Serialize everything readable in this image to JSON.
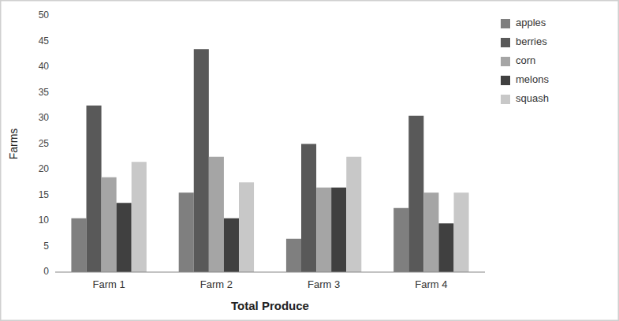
{
  "chart_data": {
    "type": "bar",
    "categories": [
      "Farm 1",
      "Farm 2",
      "Farm 3",
      "Farm 4"
    ],
    "series": [
      {
        "name": "apples",
        "color": "#7f7f7f",
        "values": [
          10.5,
          15.5,
          6.5,
          12.5
        ]
      },
      {
        "name": "berries",
        "color": "#595959",
        "values": [
          32.5,
          43.5,
          25.0,
          30.5
        ]
      },
      {
        "name": "corn",
        "color": "#a5a5a5",
        "values": [
          18.5,
          22.5,
          16.5,
          15.5
        ]
      },
      {
        "name": "melons",
        "color": "#404040",
        "values": [
          13.5,
          10.5,
          16.5,
          9.5
        ]
      },
      {
        "name": "squash",
        "color": "#c8c8c8",
        "values": [
          21.5,
          17.5,
          22.5,
          15.5
        ]
      }
    ],
    "xlabel": "Total Produce",
    "ylabel": "Farms",
    "ylim": [
      0,
      50
    ],
    "yticks": [
      0,
      5,
      10,
      15,
      20,
      25,
      30,
      35,
      40,
      45,
      50
    ],
    "grid": false,
    "legend": "right"
  }
}
